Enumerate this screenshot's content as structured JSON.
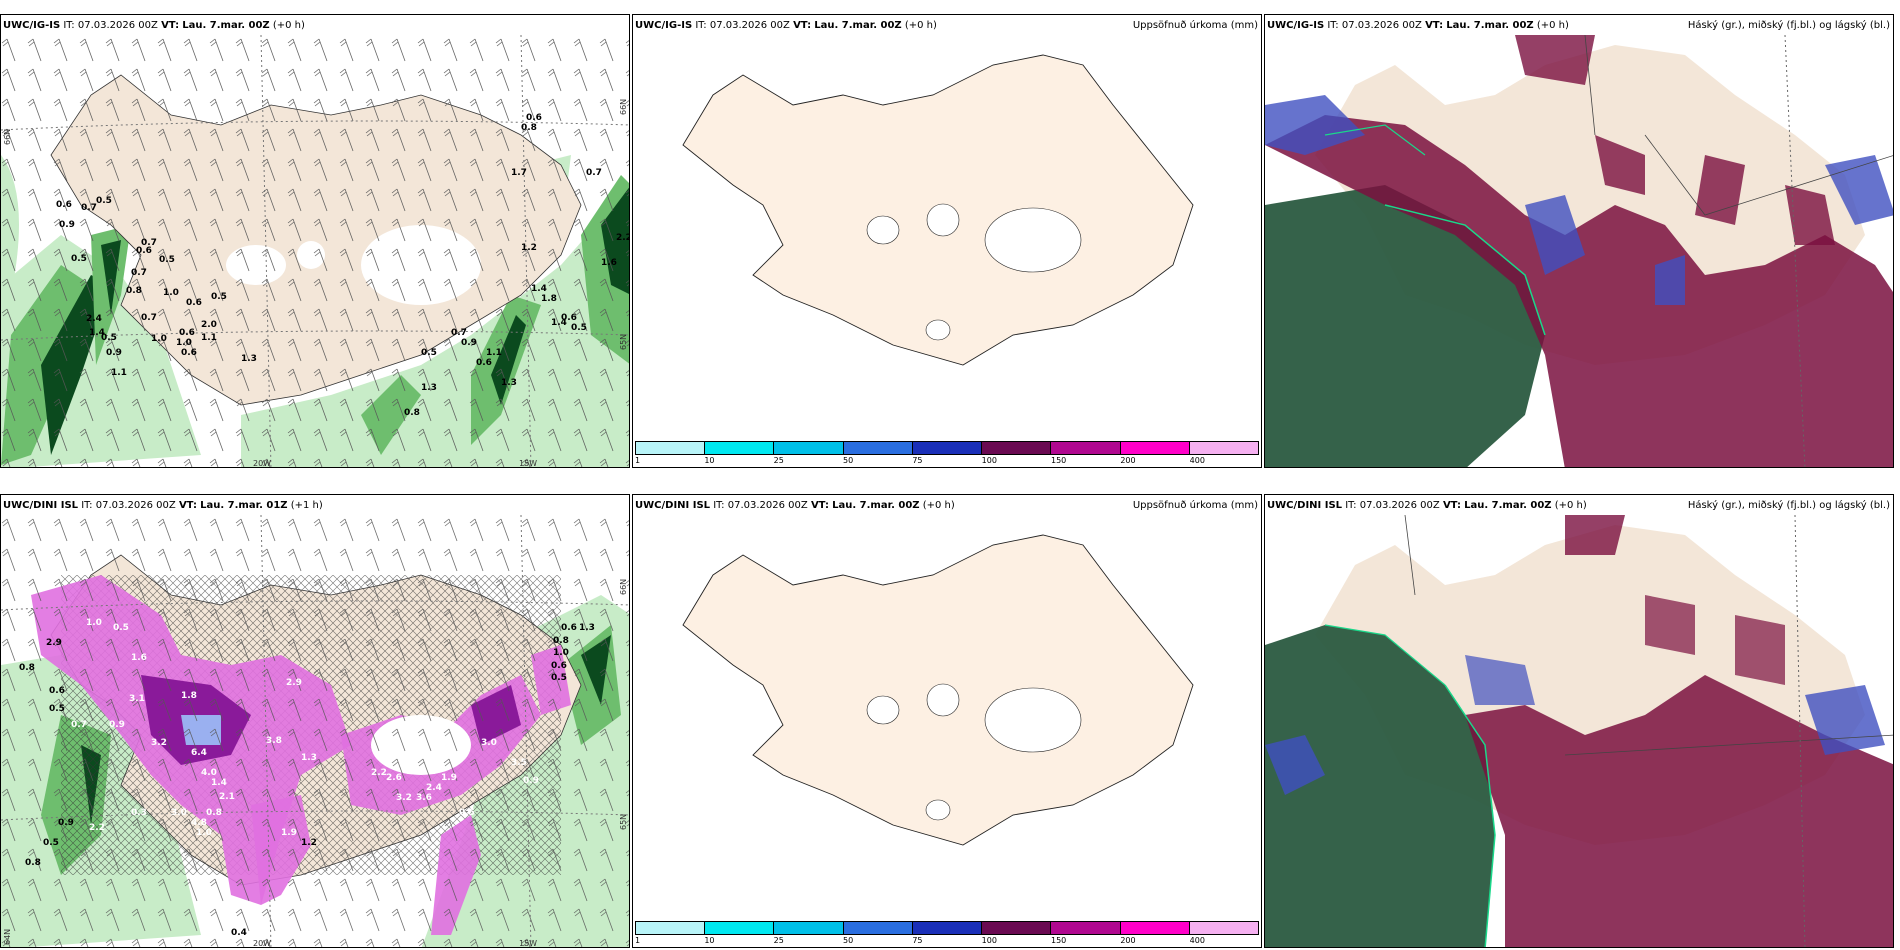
{
  "panels": [
    {
      "model": "UWC/IG-IS",
      "it_label": "IT:",
      "it_value": "07.03.2026 00Z",
      "vt_label": "VT:",
      "vt_value": "Lau. 7.mar. 00Z",
      "lead": "(+0 h)",
      "right_title": "",
      "lat_labels": [
        "66N",
        "65N",
        "64N"
      ],
      "lon_labels": [
        "20W",
        "15W"
      ],
      "precip_values": [
        "0.6",
        "0.7",
        "0.5",
        "0.9",
        "0.7",
        "0.6",
        "0.5",
        "0.5",
        "0.7",
        "0.8",
        "1.0",
        "0.5",
        "0.6",
        "2.4",
        "1.4",
        "0.9",
        "1.1",
        "1.0",
        "0.7",
        "0.5",
        "2.0",
        "1.1",
        "0.6",
        "1.0",
        "0.6",
        "1.3",
        "0.8",
        "1.7",
        "0.7",
        "1.2",
        "1.4",
        "1.8",
        "2.2",
        "1.6",
        "0.6",
        "0.5",
        "1.4",
        "0.7",
        "0.9",
        "1.1",
        "1.3",
        "0.6",
        "0.5",
        "1.3",
        "0.8",
        "0.6"
      ]
    },
    {
      "model": "UWC/IG-IS",
      "it_label": "IT:",
      "it_value": "07.03.2026 00Z",
      "vt_label": "VT:",
      "vt_value": "Lau. 7.mar. 00Z",
      "lead": "(+0 h)",
      "right_title": "Uppsöfnuð úrkoma (mm)"
    },
    {
      "model": "UWC/IG-IS",
      "it_label": "IT:",
      "it_value": "07.03.2026 00Z",
      "vt_label": "VT:",
      "vt_value": "Lau. 7.mar. 00Z",
      "lead": "(+0 h)",
      "right_title": "Háský (gr.), miðský (fj.bl.) og lágský (bl.)"
    },
    {
      "model": "UWC/DINI ISL",
      "it_label": "IT:",
      "it_value": "07.03.2026 00Z",
      "vt_label": "VT:",
      "vt_value": "Lau. 7.mar. 01Z",
      "lead": "(+1 h)",
      "right_title": "",
      "lat_labels": [
        "66N",
        "65N",
        "64N"
      ],
      "lon_labels": [
        "20W",
        "15W"
      ],
      "precip_values": [
        "0.8",
        "2.9",
        "1.0",
        "0.5",
        "0.6",
        "0.5",
        "1.6",
        "0.7",
        "3.1",
        "1.8",
        "0.9",
        "3.2",
        "6.4",
        "4.0",
        "1.4",
        "3.8",
        "2.9",
        "1.3",
        "0.8",
        "1.0",
        "3.0",
        "4.8",
        "1.9",
        "1.2",
        "0.3",
        "2.1",
        "2.6",
        "2.2",
        "3.2",
        "1.9",
        "2.4",
        "3.6",
        "3.0",
        "3.5",
        "0.9",
        "0.5",
        "0.6",
        "1.3",
        "0.8",
        "1.0",
        "0.6",
        "0.5",
        "0.9",
        "0.4",
        "0.8",
        "0.5",
        "2.2"
      ]
    },
    {
      "model": "UWC/DINI ISL",
      "it_label": "IT:",
      "it_value": "07.03.2026 00Z",
      "vt_label": "VT:",
      "vt_value": "Lau. 7.mar. 00Z",
      "lead": "(+0 h)",
      "right_title": "Uppsöfnuð úrkoma (mm)"
    },
    {
      "model": "UWC/DINI ISL",
      "it_label": "IT:",
      "it_value": "07.03.2026 00Z",
      "vt_label": "VT:",
      "vt_value": "Lau. 7.mar. 00Z",
      "lead": "(+0 h)",
      "right_title": "Háský (gr.), miðský (fj.bl.) og lágský (bl.)"
    }
  ],
  "legend": {
    "ticks": [
      "1",
      "10",
      "25",
      "50",
      "75",
      "100",
      "150",
      "200",
      "400"
    ],
    "colors": [
      "#b8f4f8",
      "#00e8f0",
      "#00c0e8",
      "#2a6ee0",
      "#1a2fb8",
      "#6a0a52",
      "#b00890",
      "#ff00c8",
      "#f5b0f0"
    ]
  },
  "colors": {
    "land": "#f3e6d8",
    "land_plain": "#fdf0e3",
    "precip_light": "#c8ecc8",
    "precip_mid": "#6ebe6e",
    "precip_dark": "#0b4a1e",
    "snow_pink": "#e070e0",
    "snow_purple": "#8a1a9a",
    "cloud_high": "#2a5a40",
    "cloud_mid": "#7a1040",
    "cloud_low": "#4050c0"
  }
}
